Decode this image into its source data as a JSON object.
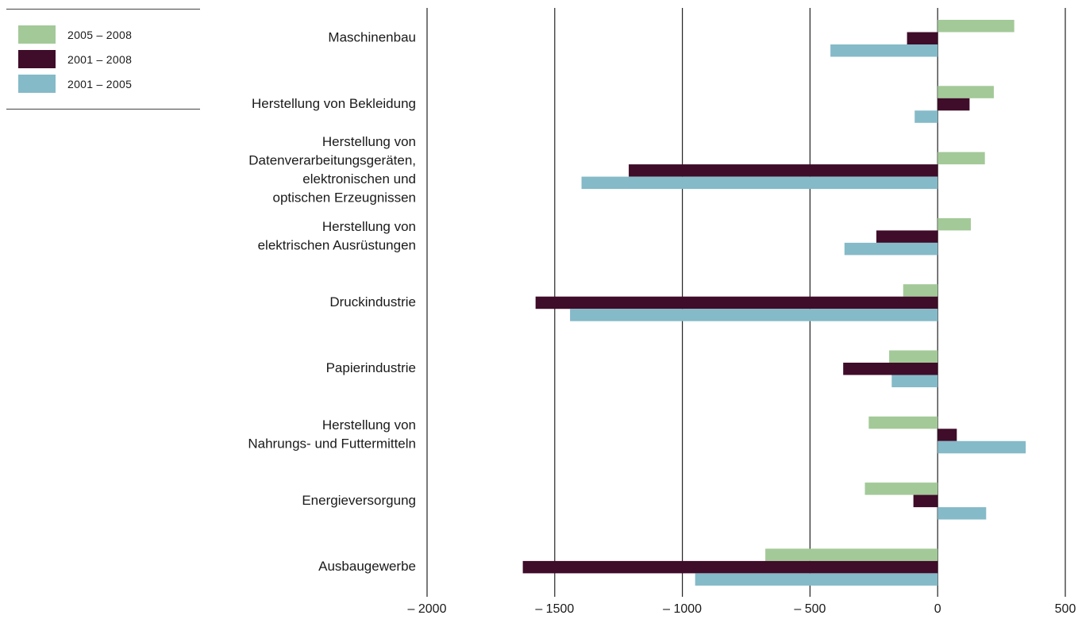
{
  "chart_data": {
    "type": "bar",
    "orientation": "horizontal",
    "categories": [
      [
        "Maschinenbau"
      ],
      [
        "Herstellung von Bekleidung"
      ],
      [
        "Herstellung von",
        "Datenverarbeitungsgeräten,",
        "elektronischen und",
        "optischen Erzeugnissen"
      ],
      [
        "Herstellung von",
        "elektrischen Ausrüstungen"
      ],
      [
        "Druckindustrie"
      ],
      [
        "Papierindustrie"
      ],
      [
        "Herstellung von",
        "Nahrungs- und Futtermitteln"
      ],
      [
        "Energieversorgung"
      ],
      [
        "Ausbaugewerbe"
      ]
    ],
    "series": [
      {
        "name": "2005 – 2008",
        "color": "#a3c998",
        "values": [
          300,
          220,
          185,
          130,
          -135,
          -190,
          -270,
          -285,
          -675
        ]
      },
      {
        "name": "2001 – 2008",
        "color": "#3f0c29",
        "values": [
          -120,
          125,
          -1210,
          -240,
          -1575,
          -370,
          75,
          -95,
          -1625
        ]
      },
      {
        "name": "2001 – 2005",
        "color": "#85bac8",
        "values": [
          -420,
          -90,
          -1395,
          -365,
          -1440,
          -180,
          345,
          190,
          -950
        ]
      }
    ],
    "xlim": [
      -2000,
      500
    ],
    "xticks": [
      -2000,
      -1500,
      -1000,
      -500,
      0,
      500
    ],
    "xtick_labels": [
      "– 2000",
      "– 1500",
      "– 1000",
      "– 500",
      "0",
      "500"
    ],
    "grid": true,
    "legend_position": "top-left",
    "title": "",
    "xlabel": "",
    "ylabel": ""
  }
}
